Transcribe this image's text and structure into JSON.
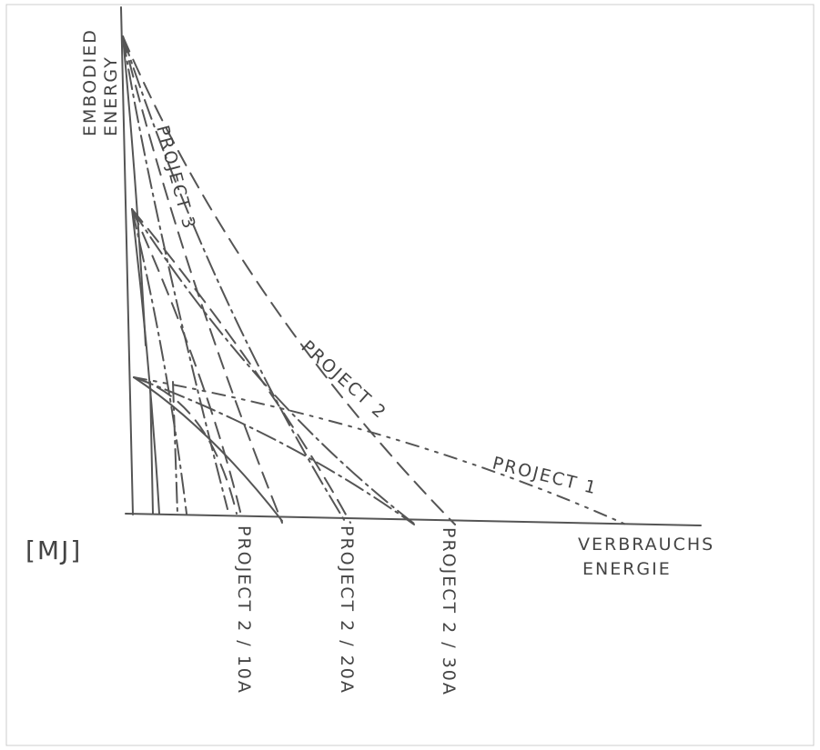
{
  "axes": {
    "y_label_line1": "EMBODIED",
    "y_label_line2": "ENERGY",
    "x_label_line1": "VERBRAUCHS",
    "x_label_line2": "ENERGIE",
    "unit": "[MJ]"
  },
  "curves": [
    {
      "label": "PROJECT 3"
    },
    {
      "label": "PROJECT 2"
    },
    {
      "label": "PROJECT 1"
    }
  ],
  "markers": [
    {
      "label": "PROJECT 2 / 10A"
    },
    {
      "label": "PROJECT 2 / 20A"
    },
    {
      "label": "PROJECT 2 / 30A"
    }
  ]
}
